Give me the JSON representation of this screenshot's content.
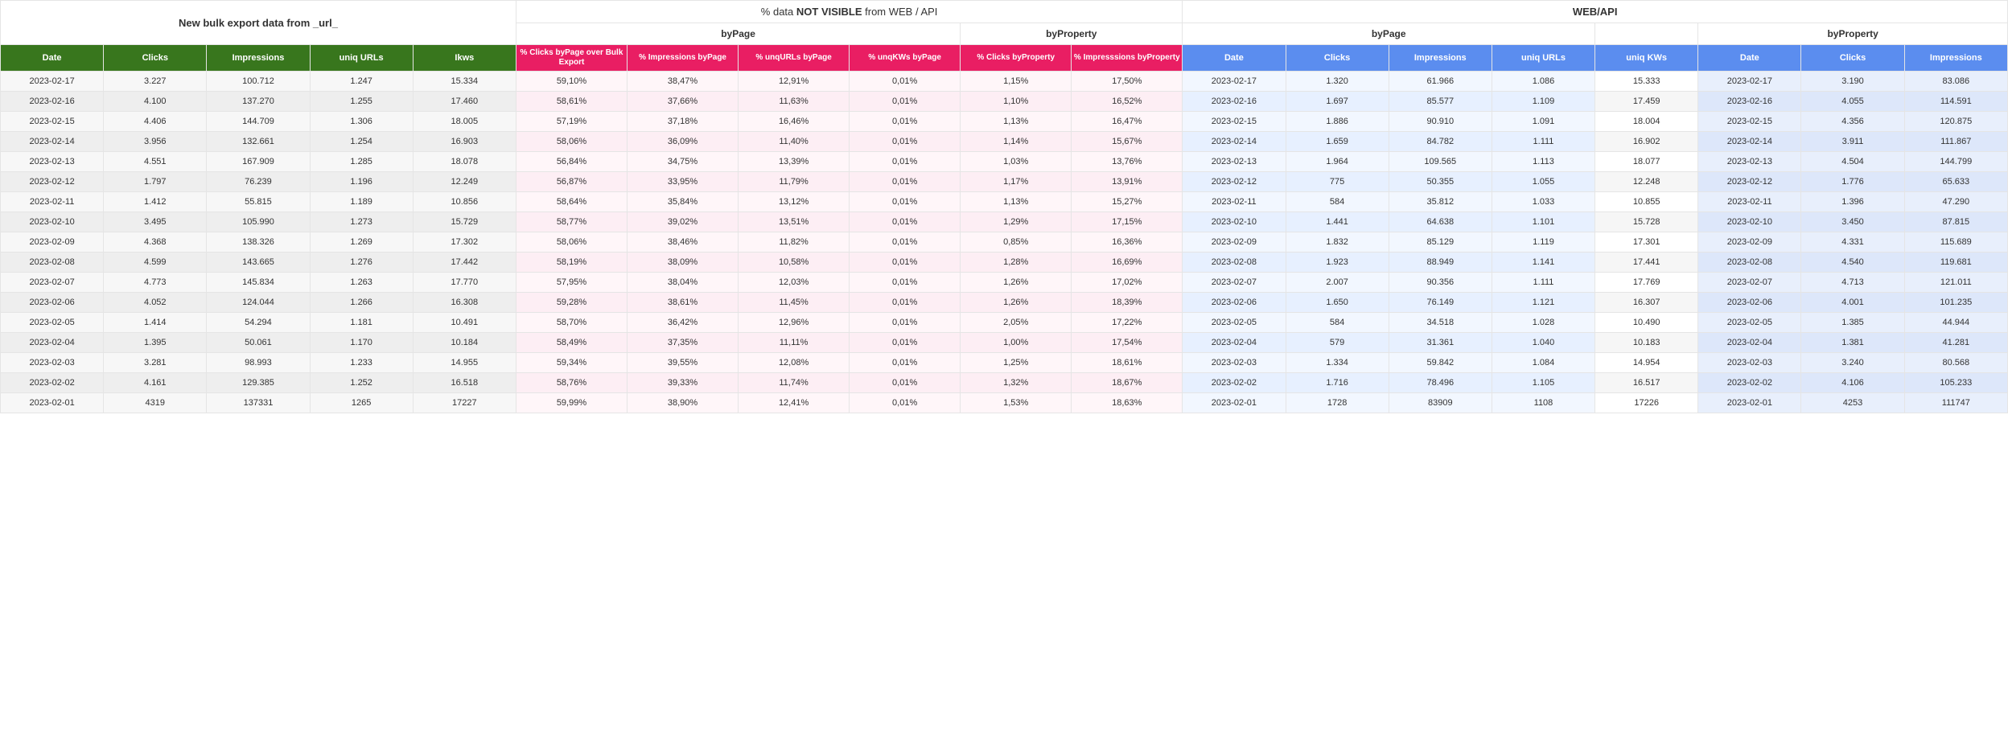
{
  "headers": {
    "super": {
      "bulk": "New bulk export  data from _url_",
      "notvis_prefix": "% data ",
      "notvis_bold": "NOT VISIBLE",
      "notvis_suffix": " from WEB / API",
      "web": "WEB/API"
    },
    "groups": {
      "bypage": "byPage",
      "byproperty": "byProperty"
    },
    "cols": {
      "bulk": [
        "Date",
        "Clicks",
        "Impressions",
        "uniq URLs",
        "Ikws"
      ],
      "notvis_page": [
        "% Clicks byPage over Bulk Export",
        "% Impressions byPage",
        "% unqURLs byPage",
        "% unqKWs byPage"
      ],
      "notvis_prop": [
        "% Clicks byProperty",
        "% Impresssions byProperty"
      ],
      "web_page": [
        "Date",
        "Clicks",
        "Impressions",
        "uniq URLs"
      ],
      "web_kws": [
        "uniq KWs"
      ],
      "web_prop": [
        "Date",
        "Clicks",
        "Impressions"
      ]
    }
  },
  "colors": {
    "green_header": "#38761d",
    "pink_header": "#e91e63",
    "blue_header": "#5b8def",
    "bulk_cell": "#f7f7f7",
    "notvis_cell": "#fff6f9",
    "web_page_cell": "#f2f7ff",
    "web_prop_cell": "#e8effc"
  },
  "rows": [
    {
      "bulk": [
        "2023-02-17",
        "3.227",
        "100.712",
        "1.247",
        "15.334"
      ],
      "nvp": [
        "59,10%",
        "38,47%",
        "12,91%",
        "0,01%"
      ],
      "nvr": [
        "1,15%",
        "17,50%"
      ],
      "wp": [
        "2023-02-17",
        "1.320",
        "61.966",
        "1.086"
      ],
      "wk": [
        "15.333"
      ],
      "wr": [
        "2023-02-17",
        "3.190",
        "83.086"
      ]
    },
    {
      "bulk": [
        "2023-02-16",
        "4.100",
        "137.270",
        "1.255",
        "17.460"
      ],
      "nvp": [
        "58,61%",
        "37,66%",
        "11,63%",
        "0,01%"
      ],
      "nvr": [
        "1,10%",
        "16,52%"
      ],
      "wp": [
        "2023-02-16",
        "1.697",
        "85.577",
        "1.109"
      ],
      "wk": [
        "17.459"
      ],
      "wr": [
        "2023-02-16",
        "4.055",
        "114.591"
      ]
    },
    {
      "bulk": [
        "2023-02-15",
        "4.406",
        "144.709",
        "1.306",
        "18.005"
      ],
      "nvp": [
        "57,19%",
        "37,18%",
        "16,46%",
        "0,01%"
      ],
      "nvr": [
        "1,13%",
        "16,47%"
      ],
      "wp": [
        "2023-02-15",
        "1.886",
        "90.910",
        "1.091"
      ],
      "wk": [
        "18.004"
      ],
      "wr": [
        "2023-02-15",
        "4.356",
        "120.875"
      ]
    },
    {
      "bulk": [
        "2023-02-14",
        "3.956",
        "132.661",
        "1.254",
        "16.903"
      ],
      "nvp": [
        "58,06%",
        "36,09%",
        "11,40%",
        "0,01%"
      ],
      "nvr": [
        "1,14%",
        "15,67%"
      ],
      "wp": [
        "2023-02-14",
        "1.659",
        "84.782",
        "1.111"
      ],
      "wk": [
        "16.902"
      ],
      "wr": [
        "2023-02-14",
        "3.911",
        "111.867"
      ]
    },
    {
      "bulk": [
        "2023-02-13",
        "4.551",
        "167.909",
        "1.285",
        "18.078"
      ],
      "nvp": [
        "56,84%",
        "34,75%",
        "13,39%",
        "0,01%"
      ],
      "nvr": [
        "1,03%",
        "13,76%"
      ],
      "wp": [
        "2023-02-13",
        "1.964",
        "109.565",
        "1.113"
      ],
      "wk": [
        "18.077"
      ],
      "wr": [
        "2023-02-13",
        "4.504",
        "144.799"
      ]
    },
    {
      "bulk": [
        "2023-02-12",
        "1.797",
        "76.239",
        "1.196",
        "12.249"
      ],
      "nvp": [
        "56,87%",
        "33,95%",
        "11,79%",
        "0,01%"
      ],
      "nvr": [
        "1,17%",
        "13,91%"
      ],
      "wp": [
        "2023-02-12",
        "775",
        "50.355",
        "1.055"
      ],
      "wk": [
        "12.248"
      ],
      "wr": [
        "2023-02-12",
        "1.776",
        "65.633"
      ]
    },
    {
      "bulk": [
        "2023-02-11",
        "1.412",
        "55.815",
        "1.189",
        "10.856"
      ],
      "nvp": [
        "58,64%",
        "35,84%",
        "13,12%",
        "0,01%"
      ],
      "nvr": [
        "1,13%",
        "15,27%"
      ],
      "wp": [
        "2023-02-11",
        "584",
        "35.812",
        "1.033"
      ],
      "wk": [
        "10.855"
      ],
      "wr": [
        "2023-02-11",
        "1.396",
        "47.290"
      ]
    },
    {
      "bulk": [
        "2023-02-10",
        "3.495",
        "105.990",
        "1.273",
        "15.729"
      ],
      "nvp": [
        "58,77%",
        "39,02%",
        "13,51%",
        "0,01%"
      ],
      "nvr": [
        "1,29%",
        "17,15%"
      ],
      "wp": [
        "2023-02-10",
        "1.441",
        "64.638",
        "1.101"
      ],
      "wk": [
        "15.728"
      ],
      "wr": [
        "2023-02-10",
        "3.450",
        "87.815"
      ]
    },
    {
      "bulk": [
        "2023-02-09",
        "4.368",
        "138.326",
        "1.269",
        "17.302"
      ],
      "nvp": [
        "58,06%",
        "38,46%",
        "11,82%",
        "0,01%"
      ],
      "nvr": [
        "0,85%",
        "16,36%"
      ],
      "wp": [
        "2023-02-09",
        "1.832",
        "85.129",
        "1.119"
      ],
      "wk": [
        "17.301"
      ],
      "wr": [
        "2023-02-09",
        "4.331",
        "115.689"
      ]
    },
    {
      "bulk": [
        "2023-02-08",
        "4.599",
        "143.665",
        "1.276",
        "17.442"
      ],
      "nvp": [
        "58,19%",
        "38,09%",
        "10,58%",
        "0,01%"
      ],
      "nvr": [
        "1,28%",
        "16,69%"
      ],
      "wp": [
        "2023-02-08",
        "1.923",
        "88.949",
        "1.141"
      ],
      "wk": [
        "17.441"
      ],
      "wr": [
        "2023-02-08",
        "4.540",
        "119.681"
      ]
    },
    {
      "bulk": [
        "2023-02-07",
        "4.773",
        "145.834",
        "1.263",
        "17.770"
      ],
      "nvp": [
        "57,95%",
        "38,04%",
        "12,03%",
        "0,01%"
      ],
      "nvr": [
        "1,26%",
        "17,02%"
      ],
      "wp": [
        "2023-02-07",
        "2.007",
        "90.356",
        "1.111"
      ],
      "wk": [
        "17.769"
      ],
      "wr": [
        "2023-02-07",
        "4.713",
        "121.011"
      ]
    },
    {
      "bulk": [
        "2023-02-06",
        "4.052",
        "124.044",
        "1.266",
        "16.308"
      ],
      "nvp": [
        "59,28%",
        "38,61%",
        "11,45%",
        "0,01%"
      ],
      "nvr": [
        "1,26%",
        "18,39%"
      ],
      "wp": [
        "2023-02-06",
        "1.650",
        "76.149",
        "1.121"
      ],
      "wk": [
        "16.307"
      ],
      "wr": [
        "2023-02-06",
        "4.001",
        "101.235"
      ]
    },
    {
      "bulk": [
        "2023-02-05",
        "1.414",
        "54.294",
        "1.181",
        "10.491"
      ],
      "nvp": [
        "58,70%",
        "36,42%",
        "12,96%",
        "0,01%"
      ],
      "nvr": [
        "2,05%",
        "17,22%"
      ],
      "wp": [
        "2023-02-05",
        "584",
        "34.518",
        "1.028"
      ],
      "wk": [
        "10.490"
      ],
      "wr": [
        "2023-02-05",
        "1.385",
        "44.944"
      ]
    },
    {
      "bulk": [
        "2023-02-04",
        "1.395",
        "50.061",
        "1.170",
        "10.184"
      ],
      "nvp": [
        "58,49%",
        "37,35%",
        "11,11%",
        "0,01%"
      ],
      "nvr": [
        "1,00%",
        "17,54%"
      ],
      "wp": [
        "2023-02-04",
        "579",
        "31.361",
        "1.040"
      ],
      "wk": [
        "10.183"
      ],
      "wr": [
        "2023-02-04",
        "1.381",
        "41.281"
      ]
    },
    {
      "bulk": [
        "2023-02-03",
        "3.281",
        "98.993",
        "1.233",
        "14.955"
      ],
      "nvp": [
        "59,34%",
        "39,55%",
        "12,08%",
        "0,01%"
      ],
      "nvr": [
        "1,25%",
        "18,61%"
      ],
      "wp": [
        "2023-02-03",
        "1.334",
        "59.842",
        "1.084"
      ],
      "wk": [
        "14.954"
      ],
      "wr": [
        "2023-02-03",
        "3.240",
        "80.568"
      ]
    },
    {
      "bulk": [
        "2023-02-02",
        "4.161",
        "129.385",
        "1.252",
        "16.518"
      ],
      "nvp": [
        "58,76%",
        "39,33%",
        "11,74%",
        "0,01%"
      ],
      "nvr": [
        "1,32%",
        "18,67%"
      ],
      "wp": [
        "2023-02-02",
        "1.716",
        "78.496",
        "1.105"
      ],
      "wk": [
        "16.517"
      ],
      "wr": [
        "2023-02-02",
        "4.106",
        "105.233"
      ]
    },
    {
      "bulk": [
        "2023-02-01",
        "4319",
        "137331",
        "1265",
        "17227"
      ],
      "nvp": [
        "59,99%",
        "38,90%",
        "12,41%",
        "0,01%"
      ],
      "nvr": [
        "1,53%",
        "18,63%"
      ],
      "wp": [
        "2023-02-01",
        "1728",
        "83909",
        "1108"
      ],
      "wk": [
        "17226"
      ],
      "wr": [
        "2023-02-01",
        "4253",
        "111747"
      ]
    }
  ]
}
